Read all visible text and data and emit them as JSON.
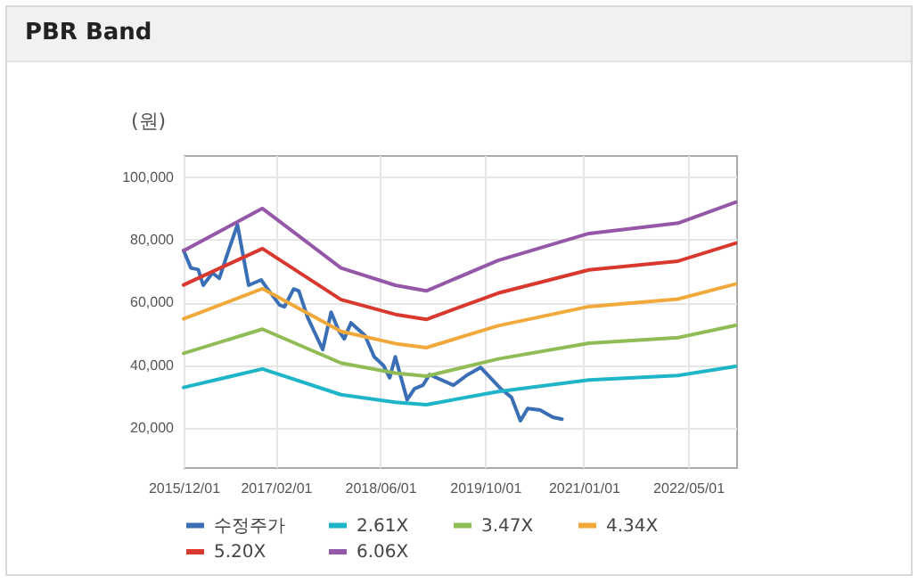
{
  "chart_data": {
    "type": "line",
    "title": "PBR Band",
    "ylabel": "(원)",
    "xlim": [
      "2015-12-01",
      "2022-12-10"
    ],
    "ylim": [
      7500,
      107000
    ],
    "xticks": [
      {
        "value": "2015-12-01",
        "label": "2015/12/01"
      },
      {
        "value": "2017-02-01",
        "label": "2017/02/01"
      },
      {
        "value": "2018-06-01",
        "label": "2018/06/01"
      },
      {
        "value": "2019-10-01",
        "label": "2019/10/01"
      },
      {
        "value": "2021-01-01",
        "label": "2021/01/01"
      },
      {
        "value": "2022-05-01",
        "label": "2022/05/01"
      }
    ],
    "yticks": [
      {
        "value": 20000,
        "label": "20,000"
      },
      {
        "value": 40000,
        "label": "40,000"
      },
      {
        "value": 60000,
        "label": "60,000"
      },
      {
        "value": 80000,
        "label": "80,000"
      },
      {
        "value": 100000,
        "label": "100,000"
      }
    ],
    "grid": true,
    "legend": "bottom",
    "marker": "none",
    "line_style": "solid",
    "series": [
      {
        "name": "수정주가",
        "color": "#3a6fb5",
        "x": [
          "2015-12-01",
          "2016-01-04",
          "2016-02-07",
          "2016-03-01",
          "2016-04-13",
          "2016-05-15",
          "2016-06-28",
          "2016-08-07",
          "2016-09-28",
          "2016-11-25",
          "2016-12-19",
          "2017-02-19",
          "2017-03-13",
          "2017-04-25",
          "2017-05-19",
          "2017-06-29",
          "2017-09-07",
          "2017-10-16",
          "2017-11-19",
          "2017-12-16",
          "2018-01-16",
          "2018-03-22",
          "2018-05-04",
          "2018-06-16",
          "2018-07-15",
          "2018-08-10",
          "2018-10-04",
          "2018-11-07",
          "2018-12-16",
          "2019-01-16",
          "2019-05-07",
          "2019-07-13",
          "2019-09-10",
          "2019-12-13",
          "2020-02-01",
          "2020-03-13",
          "2020-04-16",
          "2020-06-13",
          "2020-08-10",
          "2020-09-22"
        ],
        "values": [
          76600,
          71000,
          70500,
          65500,
          69400,
          67700,
          76800,
          84800,
          65500,
          67200,
          64900,
          59200,
          58600,
          64300,
          63700,
          55200,
          45000,
          56900,
          51200,
          48400,
          53500,
          49500,
          42700,
          39900,
          36000,
          42700,
          29000,
          32500,
          33600,
          37000,
          33600,
          37000,
          39300,
          32500,
          29700,
          22300,
          26200,
          25700,
          23400,
          22800
        ]
      },
      {
        "name": "2.61X",
        "color": "#1fb5c9",
        "x": [
          "2015-12-01",
          "2016-12-01",
          "2017-12-01",
          "2018-08-10",
          "2019-01-01",
          "2019-12-01",
          "2021-01-25",
          "2022-03-15",
          "2022-12-07"
        ],
        "values": [
          32900,
          38800,
          30600,
          28200,
          27400,
          31600,
          35300,
          36700,
          39600
        ]
      },
      {
        "name": "3.47X",
        "color": "#8fbc55",
        "x": [
          "2015-12-01",
          "2016-12-01",
          "2017-12-01",
          "2018-08-10",
          "2019-01-01",
          "2019-12-01",
          "2021-01-25",
          "2022-03-15",
          "2022-12-07"
        ],
        "values": [
          43800,
          51500,
          40700,
          37500,
          36500,
          42000,
          47000,
          48800,
          52700
        ]
      },
      {
        "name": "4.34X",
        "color": "#f2a93b",
        "x": [
          "2015-12-01",
          "2016-12-01",
          "2017-12-01",
          "2018-08-10",
          "2019-01-01",
          "2019-12-01",
          "2021-01-25",
          "2022-03-15",
          "2022-12-07"
        ],
        "values": [
          54800,
          64400,
          50800,
          46900,
          45600,
          52600,
          58700,
          61100,
          65900
        ]
      },
      {
        "name": "5.20X",
        "color": "#d9382e",
        "x": [
          "2015-12-01",
          "2016-12-01",
          "2017-12-01",
          "2018-08-10",
          "2019-01-01",
          "2019-12-01",
          "2021-01-25",
          "2022-03-15",
          "2022-12-07"
        ],
        "values": [
          65600,
          77200,
          60900,
          56200,
          54600,
          63000,
          70400,
          73200,
          78900
        ]
      },
      {
        "name": "6.06X",
        "color": "#9558a8",
        "x": [
          "2015-12-01",
          "2016-12-01",
          "2017-12-01",
          "2018-08-10",
          "2019-01-01",
          "2019-12-01",
          "2021-01-25",
          "2022-03-15",
          "2022-12-07"
        ],
        "values": [
          76500,
          90000,
          71000,
          65500,
          63700,
          73400,
          82000,
          85300,
          92000
        ]
      }
    ]
  }
}
